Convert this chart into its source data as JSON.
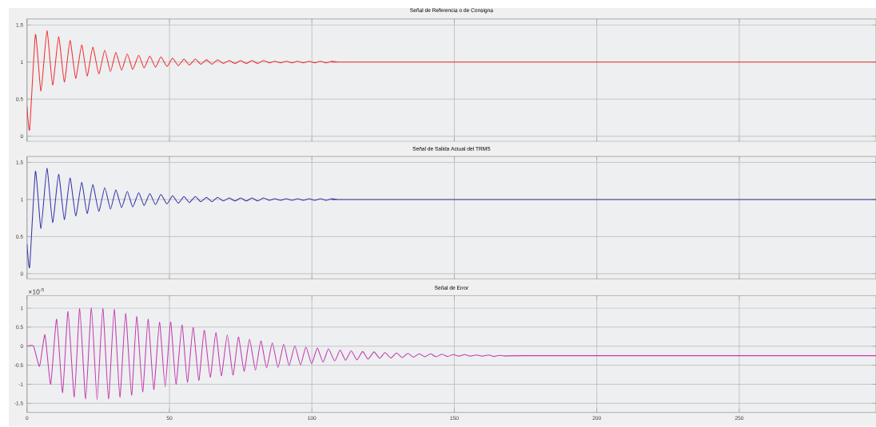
{
  "chart_data": [
    {
      "type": "line",
      "title": "Señal de Referencia o de Consigna",
      "xlim": [
        0,
        298
      ],
      "ylim": [
        -0.07,
        1.58
      ],
      "xticks": [
        0,
        50,
        100,
        150,
        200,
        250
      ],
      "yticks": [
        0,
        0.5,
        1,
        1.5
      ],
      "grid": true,
      "tick_labels": "y",
      "series": [
        {
          "color": "#f03030",
          "x": [
            0,
            0.93,
            2.96,
            4.9,
            7.0,
            9.0,
            11.1,
            13.1,
            15.1,
            17.1,
            19.2,
            21.1,
            23.1,
            25.2,
            27.3,
            29.3,
            31.2,
            33.2,
            35.2,
            37.1,
            39.2,
            41.1,
            43.1,
            45.1,
            47.0,
            49.1,
            51.1,
            53.1,
            55.1,
            57.0,
            59.1,
            61.0,
            63.0,
            64.9,
            66.9,
            68.9,
            71,
            73,
            75,
            77,
            79,
            81,
            83,
            85,
            87,
            89,
            91,
            93,
            95,
            97,
            99,
            101,
            103,
            105,
            107,
            109,
            111,
            115,
            298
          ],
          "values": [
            0.4,
            0.09,
            1.37,
            0.61,
            1.42,
            0.69,
            1.34,
            0.73,
            1.29,
            0.78,
            1.23,
            0.81,
            1.2,
            0.84,
            1.16,
            0.87,
            1.13,
            0.89,
            1.11,
            0.9,
            1.09,
            0.92,
            1.08,
            0.93,
            1.07,
            0.94,
            1.05,
            0.95,
            1.04,
            0.96,
            1.04,
            0.97,
            1.03,
            0.97,
            1.03,
            0.98,
            1.02,
            0.98,
            1.02,
            0.98,
            1.02,
            0.98,
            1.02,
            0.99,
            1.01,
            0.99,
            1.01,
            0.99,
            1.01,
            0.99,
            1.01,
            0.99,
            1.01,
            0.99,
            1.01,
            1,
            1,
            1,
            1
          ]
        }
      ]
    },
    {
      "type": "line",
      "title": "Señal de Salida Actual del TRMS",
      "xlim": [
        0,
        298
      ],
      "ylim": [
        -0.07,
        1.58
      ],
      "xticks": [
        0,
        50,
        100,
        150,
        200,
        250
      ],
      "yticks": [
        0,
        0.5,
        1,
        1.5
      ],
      "grid": true,
      "tick_labels": "y",
      "series": [
        {
          "color": "#3535a8",
          "x": [
            0,
            0.93,
            2.96,
            4.9,
            7.0,
            9.0,
            11.1,
            13.1,
            15.1,
            17.1,
            19.2,
            21.1,
            23.1,
            25.2,
            27.3,
            29.3,
            31.2,
            33.2,
            35.2,
            37.1,
            39.2,
            41.1,
            43.1,
            45.1,
            47.0,
            49.1,
            51.1,
            53.1,
            55.1,
            57.0,
            59.1,
            61.0,
            63.0,
            64.9,
            66.9,
            68.9,
            71,
            73,
            75,
            77,
            79,
            81,
            83,
            85,
            87,
            89,
            91,
            93,
            95,
            97,
            99,
            101,
            103,
            105,
            107,
            109,
            111,
            115,
            298
          ],
          "values": [
            0.4,
            0.09,
            1.38,
            0.61,
            1.42,
            0.69,
            1.34,
            0.73,
            1.29,
            0.78,
            1.23,
            0.81,
            1.2,
            0.84,
            1.16,
            0.87,
            1.13,
            0.89,
            1.11,
            0.9,
            1.09,
            0.92,
            1.08,
            0.93,
            1.07,
            0.94,
            1.05,
            0.95,
            1.04,
            0.96,
            1.04,
            0.97,
            1.03,
            0.97,
            1.03,
            0.98,
            1.02,
            0.98,
            1.02,
            0.98,
            1.02,
            0.98,
            1.02,
            0.99,
            1.01,
            0.99,
            1.01,
            0.99,
            1.01,
            0.99,
            1.01,
            0.99,
            1.01,
            0.99,
            1.01,
            1,
            1,
            1,
            1
          ]
        }
      ]
    },
    {
      "type": "line",
      "title": "Señal de Error",
      "annotations": [
        "×10$^{-5}$"
      ],
      "xlim": [
        0,
        298
      ],
      "ylim": [
        -1.74,
        1.33
      ],
      "xticks": [
        0,
        50,
        100,
        150,
        200,
        250
      ],
      "yticks": [
        -1.5,
        -1,
        -0.5,
        0,
        0.5,
        1
      ],
      "grid": true,
      "series": [
        {
          "color": "#c23ab0",
          "x": [
            0,
            2.3,
            4.4,
            6.3,
            8.3,
            10.4,
            12.5,
            14.4,
            16.6,
            18.5,
            20.6,
            22.6,
            24.6,
            26.6,
            28.6,
            30.6,
            32.6,
            34.6,
            36.7,
            38.5,
            40.6,
            42.5,
            44.5,
            46.5,
            48.5,
            50.4,
            52.3,
            54.4,
            56.3,
            58.3,
            60.3,
            62.2,
            64.3,
            66.3,
            68.2,
            70.3,
            72.3,
            74.2,
            76.2,
            78.1,
            80.2,
            82.1,
            84.1,
            86.1,
            88.1,
            90.1,
            92.0,
            94.0,
            96.0,
            97.9,
            99.9,
            101.9,
            103.9,
            105.8,
            108.0,
            109.9,
            111.8,
            113.8,
            115.8,
            117.8,
            119.7,
            121.8,
            123.8,
            125.6,
            127.7,
            129.7,
            131.7,
            133.7,
            135.6,
            137.7,
            139.6,
            141.7,
            143.6,
            145.6,
            147.6,
            149.6,
            151.6,
            153.6,
            155.6,
            157.7,
            159.8,
            162,
            164,
            166,
            168,
            175,
            298
          ],
          "values": [
            0,
            0,
            -0.53,
            0.3,
            -1.0,
            0.71,
            -1.22,
            0.91,
            -1.34,
            0.99,
            -1.39,
            1.01,
            -1.41,
            1.0,
            -1.39,
            0.97,
            -1.34,
            0.86,
            -1.29,
            0.78,
            -1.2,
            0.71,
            -1.14,
            0.63,
            -1.07,
            0.64,
            -1.0,
            0.56,
            -0.95,
            0.49,
            -0.9,
            0.42,
            -0.82,
            0.36,
            -0.78,
            0.3,
            -0.76,
            0.24,
            -0.66,
            0.18,
            -0.63,
            0.14,
            -0.57,
            0.09,
            -0.56,
            0.05,
            -0.51,
            0.01,
            -0.49,
            -0.02,
            -0.46,
            -0.05,
            -0.42,
            -0.07,
            -0.39,
            -0.1,
            -0.37,
            -0.12,
            -0.36,
            -0.14,
            -0.34,
            -0.15,
            -0.32,
            -0.17,
            -0.31,
            -0.18,
            -0.3,
            -0.19,
            -0.29,
            -0.2,
            -0.28,
            -0.2,
            -0.28,
            -0.21,
            -0.27,
            -0.22,
            -0.26,
            -0.22,
            -0.26,
            -0.23,
            -0.26,
            -0.23,
            -0.27,
            -0.24,
            -0.26,
            -0.25,
            -0.25
          ]
        }
      ]
    }
  ]
}
